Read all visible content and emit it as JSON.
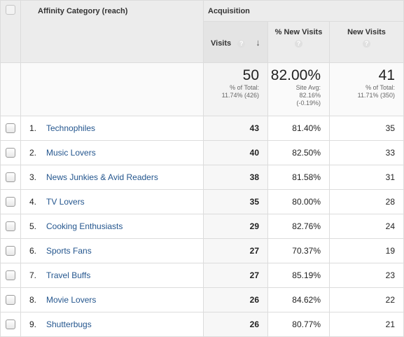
{
  "header": {
    "group_label": "Acquisition",
    "dimension_label": "Affinity Category (reach)",
    "columns": [
      {
        "label": "Visits",
        "help": "?",
        "sort": "↓"
      },
      {
        "label": "% New Visits",
        "help": "?"
      },
      {
        "label": "New Visits",
        "help": "?"
      }
    ]
  },
  "summary": {
    "visits": {
      "value": "50",
      "line1": "% of Total:",
      "line2": "11.74% (426)"
    },
    "pct_new": {
      "value": "82.00%",
      "line1": "Site Avg:",
      "line2": "82.16%",
      "line3": "(-0.19%)"
    },
    "new_visits": {
      "value": "41",
      "line1": "% of Total:",
      "line2": "11.71% (350)"
    }
  },
  "rows": [
    {
      "index": "1.",
      "name": "Technophiles",
      "visits": "43",
      "pct_new": "81.40%",
      "new_visits": "35"
    },
    {
      "index": "2.",
      "name": "Music Lovers",
      "visits": "40",
      "pct_new": "82.50%",
      "new_visits": "33"
    },
    {
      "index": "3.",
      "name": "News Junkies & Avid Readers",
      "visits": "38",
      "pct_new": "81.58%",
      "new_visits": "31"
    },
    {
      "index": "4.",
      "name": "TV Lovers",
      "visits": "35",
      "pct_new": "80.00%",
      "new_visits": "28"
    },
    {
      "index": "5.",
      "name": "Cooking Enthusiasts",
      "visits": "29",
      "pct_new": "82.76%",
      "new_visits": "24"
    },
    {
      "index": "6.",
      "name": "Sports Fans",
      "visits": "27",
      "pct_new": "70.37%",
      "new_visits": "19"
    },
    {
      "index": "7.",
      "name": "Travel Buffs",
      "visits": "27",
      "pct_new": "85.19%",
      "new_visits": "23"
    },
    {
      "index": "8.",
      "name": "Movie Lovers",
      "visits": "26",
      "pct_new": "84.62%",
      "new_visits": "22"
    },
    {
      "index": "9.",
      "name": "Shutterbugs",
      "visits": "26",
      "pct_new": "80.77%",
      "new_visits": "21"
    }
  ]
}
